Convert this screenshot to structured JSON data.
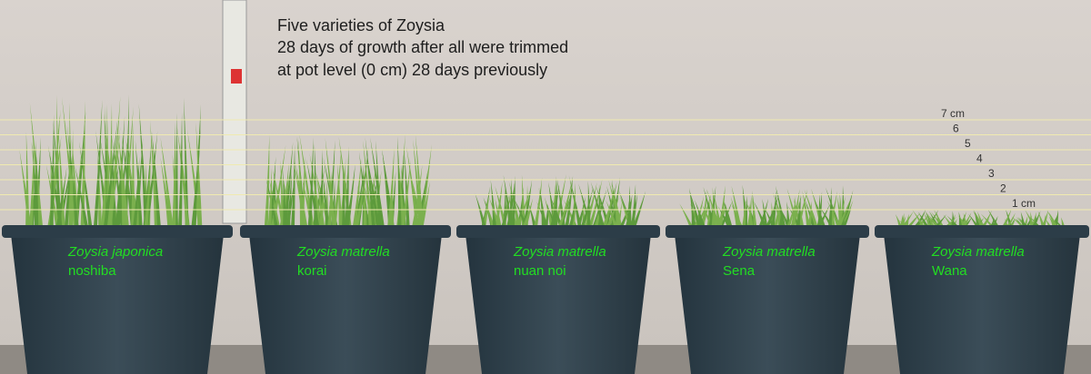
{
  "title_lines": [
    "Five varieties of Zoysia",
    "28 days of growth after all were trimmed",
    "at pot level (0 cm) 28 days previously"
  ],
  "scale_labels": [
    "7 cm",
    "6",
    "5",
    "4",
    "3",
    "2",
    "1 cm"
  ],
  "pots": [
    {
      "species": "Zoysia japonica",
      "variety": "noshiba"
    },
    {
      "species": "Zoysia matrella",
      "variety": "korai"
    },
    {
      "species": "Zoysia matrella",
      "variety": "nuan noi"
    },
    {
      "species": "Zoysia matrella",
      "variety": "Sena"
    },
    {
      "species": "Zoysia matrella",
      "variety": "Wana"
    }
  ]
}
